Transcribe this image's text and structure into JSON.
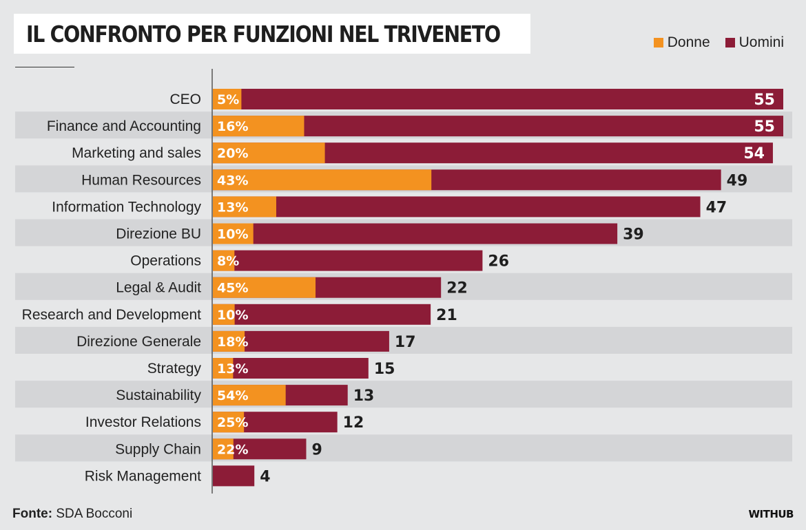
{
  "header": {
    "title": "IL CONFRONTO PER FUNZIONI NEL TRIVENETO"
  },
  "legend": [
    {
      "label": "Donne",
      "color": "#f39220"
    },
    {
      "label": "Uomini",
      "color": "#8c1c37"
    }
  ],
  "footer": {
    "source_label": "Fonte:",
    "source_value": "SDA Bocconi",
    "brand": "WITHUB"
  },
  "chart_data": {
    "type": "bar",
    "orientation": "horizontal",
    "stacked": "women share shown as percentage of total bar",
    "title": "IL CONFRONTO PER FUNZIONI NEL TRIVENETO",
    "xlabel": "",
    "ylabel": "",
    "xlim": [
      0,
      55
    ],
    "grid": false,
    "legend_position": "top-right",
    "colors": {
      "donne": "#f39220",
      "uomini": "#8c1c37",
      "row_shade": "#d4d5d7"
    },
    "categories": [
      "CEO",
      "Finance and Accounting",
      "Marketing and sales",
      "Human Resources",
      "Information Technology",
      "Direzione BU",
      "Operations",
      "Legal & Audit",
      "Research and Development",
      "Direzione Generale",
      "Strategy",
      "Sustainability",
      "Investor Relations",
      "Supply Chain",
      "Risk Management"
    ],
    "totals": [
      55,
      55,
      54,
      49,
      47,
      39,
      26,
      22,
      21,
      17,
      15,
      13,
      12,
      9,
      4
    ],
    "donne_percent": [
      5,
      16,
      20,
      43,
      13,
      10,
      8,
      45,
      10,
      18,
      13,
      54,
      25,
      22,
      0
    ],
    "donne_labels": [
      "5%",
      "16%",
      "20%",
      "43%",
      "13%",
      "10%",
      "8%",
      "45%",
      "10%",
      "18%",
      "13%",
      "54%",
      "25%",
      "22%",
      ""
    ],
    "series": [
      {
        "name": "Donne",
        "values_percent": [
          5,
          16,
          20,
          43,
          13,
          10,
          8,
          45,
          10,
          18,
          13,
          54,
          25,
          22,
          0
        ]
      },
      {
        "name": "Uomini",
        "values_percent": [
          95,
          84,
          80,
          57,
          87,
          90,
          92,
          55,
          90,
          82,
          87,
          46,
          75,
          78,
          100
        ]
      }
    ]
  }
}
